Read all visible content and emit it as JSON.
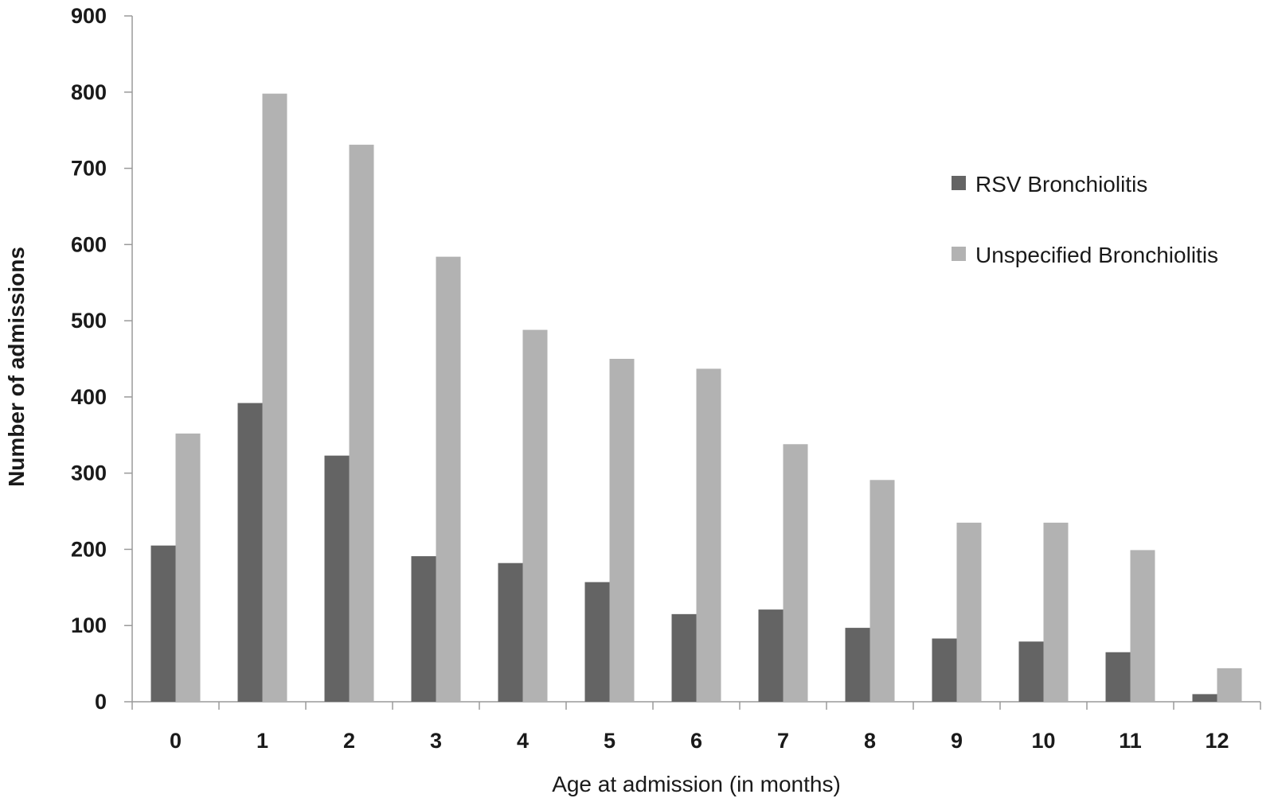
{
  "chart_data": {
    "type": "bar",
    "title": "",
    "xlabel": "Age at admission (in months)",
    "ylabel": "Number of admissions",
    "categories": [
      "0",
      "1",
      "2",
      "3",
      "4",
      "5",
      "6",
      "7",
      "8",
      "9",
      "10",
      "11",
      "12"
    ],
    "series": [
      {
        "name": "RSV Bronchiolitis",
        "color": "#646464",
        "values": [
          205,
          392,
          323,
          191,
          182,
          157,
          115,
          121,
          97,
          83,
          79,
          65,
          10
        ]
      },
      {
        "name": "Unspecified Bronchiolitis",
        "color": "#b2b2b2",
        "values": [
          352,
          798,
          731,
          584,
          488,
          450,
          437,
          338,
          291,
          235,
          235,
          199,
          44
        ]
      }
    ],
    "ylim": [
      0,
      900
    ],
    "yticks": [
      0,
      100,
      200,
      300,
      400,
      500,
      600,
      700,
      800,
      900
    ],
    "grid": false,
    "legend_position": "right"
  }
}
